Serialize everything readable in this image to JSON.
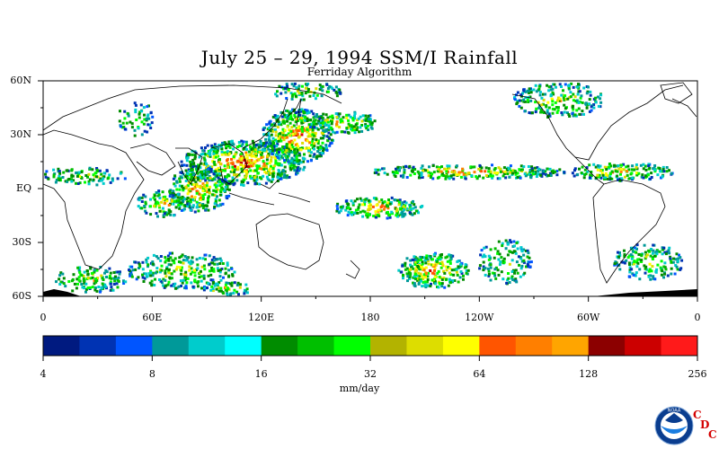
{
  "title": "July 25 – 29, 1994 SSM/I Rainfall",
  "subtitle": "Ferriday Algorithm",
  "lat_labels": [
    "60N",
    "30N",
    "EQ",
    "30S",
    "60S"
  ],
  "lon_labels": [
    "0",
    "60E",
    "120E",
    "180",
    "120W",
    "60W",
    "0"
  ],
  "colorbar": {
    "colors": [
      "#001a80",
      "#0033b3",
      "#0055ff",
      "#009999",
      "#00cccc",
      "#00ffff",
      "#008c00",
      "#00bf00",
      "#00ff00",
      "#b3b300",
      "#dddd00",
      "#ffff00",
      "#ff5500",
      "#ff7f00",
      "#ffa500",
      "#8c0000",
      "#cc0000",
      "#ff1a1a"
    ],
    "tick_labels": [
      "4",
      "8",
      "16",
      "32",
      "64",
      "128",
      "256"
    ],
    "units": "mm/day"
  },
  "logo": {
    "icon": "noaa-logo-icon",
    "text": "NOAA",
    "cdc_letters": [
      "C",
      "D",
      "C"
    ]
  }
}
